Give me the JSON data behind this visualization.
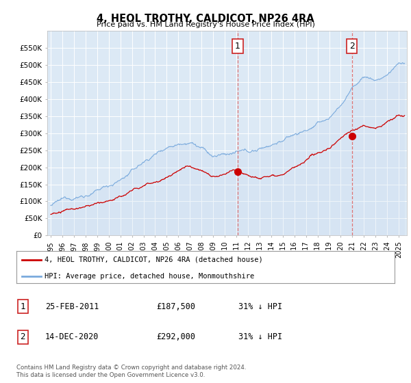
{
  "title": "4, HEOL TROTHY, CALDICOT, NP26 4RA",
  "subtitle": "Price paid vs. HM Land Registry's House Price Index (HPI)",
  "plot_bg_color": "#dce9f5",
  "ylim": [
    0,
    600000
  ],
  "yticks": [
    0,
    50000,
    100000,
    150000,
    200000,
    250000,
    300000,
    350000,
    400000,
    450000,
    500000,
    550000
  ],
  "xlim_start": 1994.7,
  "xlim_end": 2025.7,
  "red_line_color": "#cc0000",
  "blue_line_color": "#7aaadd",
  "blue_fill_color": "#c5d9ee",
  "marker1_x": 2011.12,
  "marker1_y": 187500,
  "marker1_label": "1",
  "marker1_date": "25-FEB-2011",
  "marker1_price": "£187,500",
  "marker1_hpi": "31% ↓ HPI",
  "marker2_x": 2020.96,
  "marker2_y": 292000,
  "marker2_label": "2",
  "marker2_date": "14-DEC-2020",
  "marker2_price": "£292,000",
  "marker2_hpi": "31% ↓ HPI",
  "legend_line1": "4, HEOL TROTHY, CALDICOT, NP26 4RA (detached house)",
  "legend_line2": "HPI: Average price, detached house, Monmouthshire",
  "footer": "Contains HM Land Registry data © Crown copyright and database right 2024.\nThis data is licensed under the Open Government Licence v3.0.",
  "xtick_years": [
    1995,
    1996,
    1997,
    1998,
    1999,
    2000,
    2001,
    2002,
    2003,
    2004,
    2005,
    2006,
    2007,
    2008,
    2009,
    2010,
    2011,
    2012,
    2013,
    2014,
    2015,
    2016,
    2017,
    2018,
    2019,
    2020,
    2021,
    2022,
    2023,
    2024,
    2025
  ]
}
